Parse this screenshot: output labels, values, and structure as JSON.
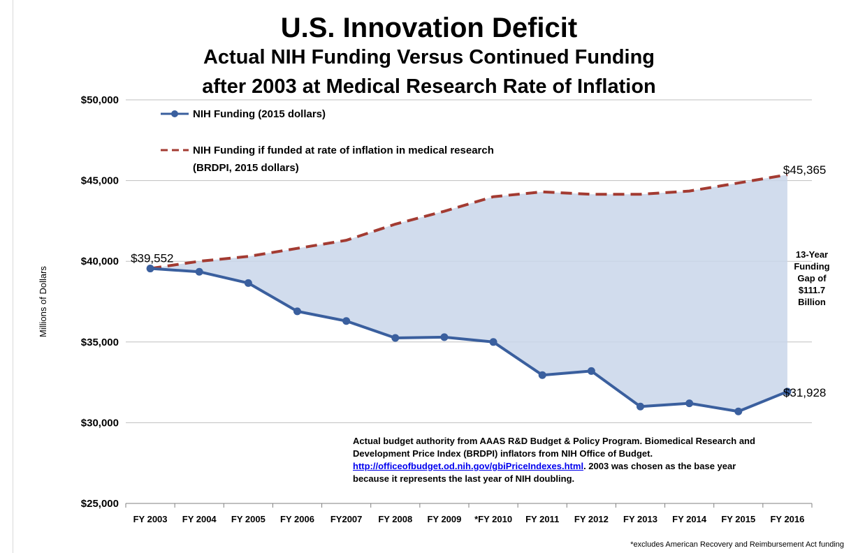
{
  "title": "U.S. Innovation Deficit",
  "subtitle_line1": "Actual NIH Funding Versus Continued Funding",
  "subtitle_line2": "after 2003 at Medical Research Rate of Inflation",
  "gap_note": [
    "13-Year",
    "Funding",
    "Gap of",
    "$111.7",
    "Billion"
  ],
  "source_note": {
    "text_before": "Actual budget authority from AAAS R&D Budget & Policy Program. Biomedical Research and Development Price Index (BRDPI) inflators from NIH Office of Budget.  ",
    "link": "http://officeofbudget.od.nih.gov/gbiPriceIndexes.html",
    "text_after": ". 2003 was chosen as the base year because it represents the last year of NIH doubling."
  },
  "footnote": "*excludes American Recovery and Reimbursement Act funding",
  "colors": {
    "actual": "#3a5f9e",
    "inflation": "#a33b32",
    "gap_fill": "#c9d6ea",
    "grid": "#bfbfbf"
  },
  "chart_data": {
    "type": "line",
    "ylabel": "Millions of Dollars",
    "xlabel": "",
    "ylim": [
      25000,
      50000
    ],
    "yticks": [
      25000,
      30000,
      35000,
      40000,
      45000,
      50000
    ],
    "ytick_labels": [
      "$25,000",
      "$30,000",
      "$35,000",
      "$40,000",
      "$45,000",
      "$50,000"
    ],
    "grid": true,
    "legend_placement": "top-left",
    "categories": [
      "FY 2003",
      "FY 2004",
      "FY 2005",
      "FY 2006",
      "FY2007",
      "FY 2008",
      "FY 2009",
      "*FY 2010",
      "FY 2011",
      "FY 2012",
      "FY 2013",
      "FY 2014",
      "FY 2015",
      "FY 2016"
    ],
    "series": [
      {
        "name": "NIH Funding (2015 dollars)",
        "style": "solid-markers",
        "values": [
          39552,
          39350,
          38650,
          36900,
          36300,
          35250,
          35300,
          35000,
          32950,
          33200,
          31000,
          31200,
          30700,
          31928
        ]
      },
      {
        "name": "NIH Funding if funded at rate of inflation in medical research (BRDPI, 2015 dollars)",
        "legend_lines": [
          "NIH Funding if funded at rate of inflation in medical research",
          "(BRDPI, 2015 dollars)"
        ],
        "style": "dashed",
        "values": [
          39552,
          40000,
          40300,
          40800,
          41300,
          42300,
          43100,
          44000,
          44300,
          44150,
          44150,
          44350,
          44850,
          45365
        ]
      }
    ],
    "annotations": [
      {
        "text": "$39,552",
        "category": "FY 2003",
        "series": 0
      },
      {
        "text": "$45,365",
        "category": "FY 2016",
        "series": 1
      },
      {
        "text": "$31,928",
        "category": "FY 2016",
        "series": 0
      }
    ]
  }
}
